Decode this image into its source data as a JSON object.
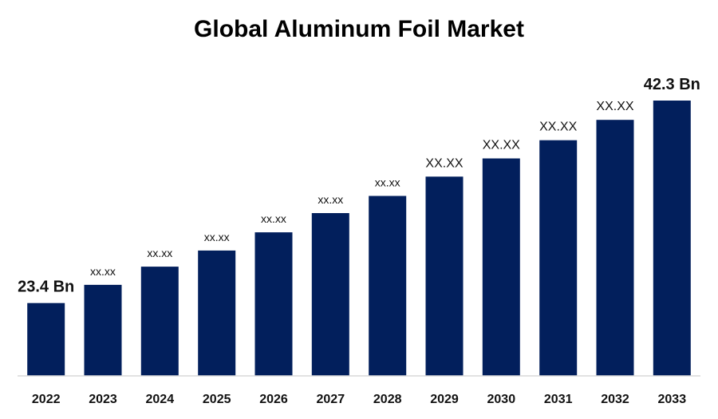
{
  "chart_data": {
    "type": "bar",
    "title": "Global Aluminum Foil Market",
    "xlabel": "",
    "ylabel": "",
    "categories": [
      "2022",
      "2023",
      "2024",
      "2025",
      "2026",
      "2027",
      "2028",
      "2029",
      "2030",
      "2031",
      "2032",
      "2033"
    ],
    "values": [
      23.4,
      25.1,
      26.8,
      28.3,
      30.0,
      31.8,
      33.4,
      35.2,
      36.9,
      38.6,
      40.5,
      42.3
    ],
    "data_labels": [
      "23.4 Bn",
      "xx.xx",
      "xx.xx",
      "xx.xx",
      "xx.xx",
      "xx.xx",
      "xx.xx",
      "XX.XX",
      "XX.XX",
      "XX.XX",
      "XX.XX",
      "42.3 Bn"
    ],
    "ylim": [
      16.6,
      42.3
    ],
    "grid": false,
    "legend": "none",
    "bar_color": "#021f5c",
    "axis_color": "#d9d9d9"
  }
}
